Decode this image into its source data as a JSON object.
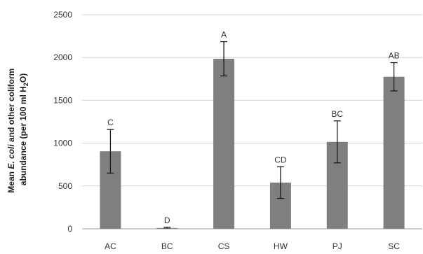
{
  "chart_data": {
    "type": "bar",
    "categories": [
      "AC",
      "BC",
      "CS",
      "HW",
      "PJ",
      "SC"
    ],
    "values": [
      905,
      10,
      1985,
      540,
      1015,
      1775
    ],
    "error": [
      255,
      8,
      200,
      185,
      245,
      165
    ],
    "significance_labels": [
      "C",
      "D",
      "A",
      "CD",
      "BC",
      "AB"
    ],
    "ylabel_line1_pre": "Mean ",
    "ylabel_line1_italic": "E. coli",
    "ylabel_line1_post": " and other coliform",
    "ylabel_line2_pre": "abundance (per 100 ml H",
    "ylabel_line2_sub": "2",
    "ylabel_line2_post": "O)",
    "xlabel": "",
    "ylim": [
      0,
      2500
    ],
    "yticks": [
      0,
      500,
      1000,
      1500,
      2000,
      2500
    ],
    "grid": true,
    "bar_color": "#7f7f7f"
  }
}
